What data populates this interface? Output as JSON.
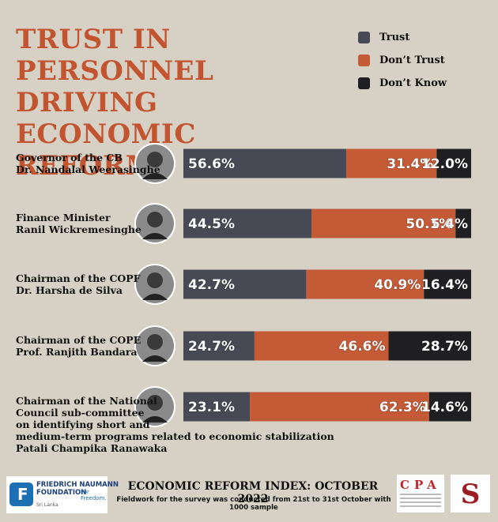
{
  "chart_data": {
    "type": "stacked-bar-horizontal",
    "title": "TRUST IN PERSONNEL DRIVING ECONOMIC REFORMS",
    "categories": [
      "Governor of the CB\nDr. Nandalal Weerasinghe",
      "Finance Minister\nRanil Wickremesinghe",
      "Chairman of the COPF\nDr. Harsha de Silva",
      "Chairman of the COPE\nProf. Ranjith Bandara",
      "Chairman of the National\nCouncil sub-committee\non identifying short and\nmedium-term programs related to economic stabilization\nPatali Champika Ranawaka"
    ],
    "xlim": [
      0,
      100
    ],
    "series": [
      {
        "name": "Trust",
        "color": "#474a55",
        "values": [
          56.6,
          44.5,
          42.7,
          24.7,
          23.1
        ],
        "value_labels": [
          "56.6%",
          "44.5%",
          "42.7%",
          "24.7%",
          "23.1%"
        ]
      },
      {
        "name": "Don’t Trust",
        "color": "#c45a36",
        "values": [
          31.4,
          50.1,
          40.9,
          46.6,
          62.3
        ],
        "value_labels": [
          "31.4%",
          "50.1%",
          "40.9%",
          "46.6%",
          "62.3%"
        ]
      },
      {
        "name": "Don’t Know",
        "color": "#1f1f21",
        "values": [
          12.0,
          5.4,
          16.4,
          28.7,
          14.6
        ],
        "value_labels": [
          "12.0%",
          "5.4%",
          "16.4%",
          "28.7%",
          "14.6%"
        ]
      }
    ]
  },
  "footer": {
    "title": "ECONOMIC REFORM INDEX: OCTOBER 2022",
    "note": "Fieldwork for the survey was conducted from 21st to 31st October with 1000 sample",
    "logo_left": {
      "name": "FRIEDRICH NAUMANN\nFOUNDATION",
      "tagline": "For Freedom.",
      "region": "Sri Lanka"
    },
    "logo_mid": "CPA"
  }
}
